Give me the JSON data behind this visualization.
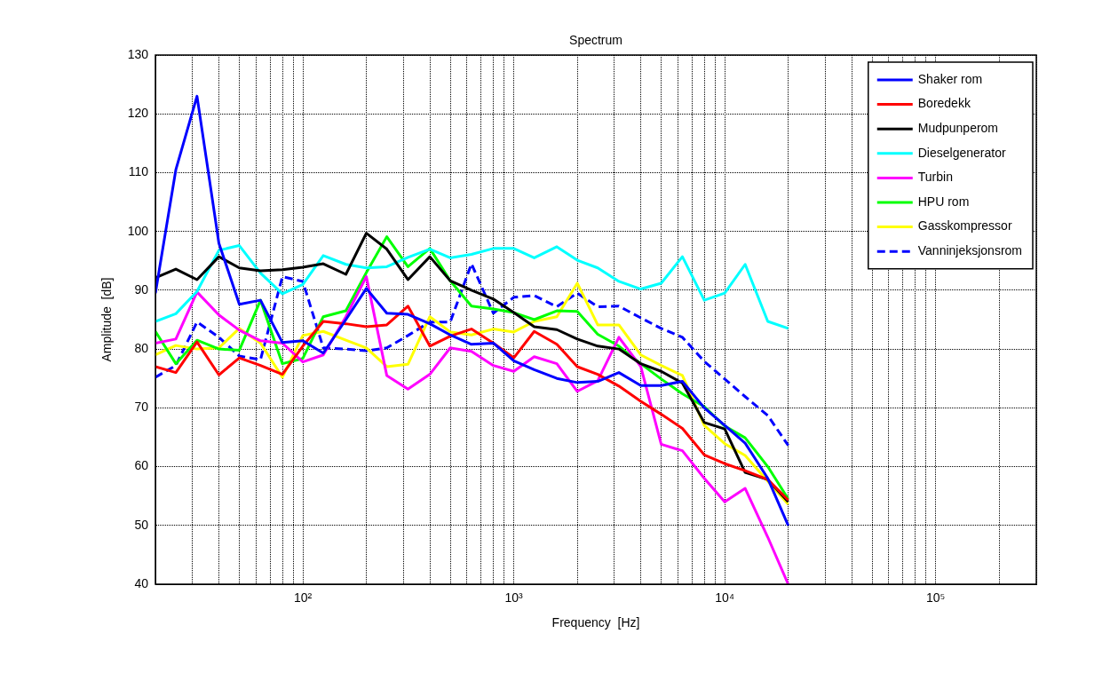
{
  "chart_data": {
    "type": "line",
    "title": "Spectrum",
    "xlabel": "Frequency  [Hz]",
    "ylabel": "Amplitude  [dB]",
    "log": "x",
    "grid": true,
    "legend": "top right",
    "line_style": "solid",
    "xlim": [
      20,
      300000
    ],
    "ylim": [
      40,
      130
    ],
    "xticks": [
      {
        "value": 20,
        "label": null
      },
      {
        "value": 30,
        "label": null
      },
      {
        "value": 40,
        "label": null
      },
      {
        "value": 50,
        "label": null
      },
      {
        "value": 60,
        "label": null
      },
      {
        "value": 70,
        "label": null
      },
      {
        "value": 80,
        "label": null
      },
      {
        "value": 90,
        "label": null
      },
      {
        "value": 100,
        "label": "10²"
      },
      {
        "value": 200,
        "label": null
      },
      {
        "value": 300,
        "label": null
      },
      {
        "value": 400,
        "label": null
      },
      {
        "value": 500,
        "label": null
      },
      {
        "value": 600,
        "label": null
      },
      {
        "value": 700,
        "label": null
      },
      {
        "value": 800,
        "label": null
      },
      {
        "value": 900,
        "label": null
      },
      {
        "value": 1000,
        "label": "10³"
      },
      {
        "value": 2000,
        "label": null
      },
      {
        "value": 3000,
        "label": null
      },
      {
        "value": 4000,
        "label": null
      },
      {
        "value": 5000,
        "label": null
      },
      {
        "value": 6000,
        "label": null
      },
      {
        "value": 7000,
        "label": null
      },
      {
        "value": 8000,
        "label": null
      },
      {
        "value": 9000,
        "label": null
      },
      {
        "value": 10000,
        "label": "10⁴"
      },
      {
        "value": 20000,
        "label": null
      },
      {
        "value": 30000,
        "label": null
      },
      {
        "value": 40000,
        "label": null
      },
      {
        "value": 50000,
        "label": null
      },
      {
        "value": 60000,
        "label": null
      },
      {
        "value": 70000,
        "label": null
      },
      {
        "value": 80000,
        "label": null
      },
      {
        "value": 90000,
        "label": null
      },
      {
        "value": 100000,
        "label": "10⁵"
      },
      {
        "value": 200000,
        "label": null
      },
      {
        "value": 300000,
        "label": null
      }
    ],
    "yticks": [
      40,
      50,
      60,
      70,
      80,
      90,
      100,
      110,
      120,
      130
    ],
    "x": [
      20,
      25,
      31.5,
      40,
      50,
      63,
      80,
      100,
      125,
      160,
      200,
      250,
      315,
      400,
      500,
      630,
      800,
      1000,
      1250,
      1600,
      2000,
      2500,
      3150,
      4000,
      5000,
      6300,
      8000,
      10000,
      12500,
      16000,
      20000
    ],
    "series": [
      {
        "name": "Shaker rom",
        "color": "#0000ff",
        "values": [
          89.5,
          110.5,
          123,
          98,
          87.6,
          88.3,
          81.1,
          81.4,
          79.3,
          85,
          90.3,
          86.1,
          85.9,
          84.3,
          82.4,
          80.8,
          81,
          78,
          76.5,
          75,
          74.3,
          74.5,
          76,
          73.8,
          73.8,
          74.5,
          70,
          67,
          64,
          58,
          50
        ]
      },
      {
        "name": "Boredekk",
        "color": "#ff0000",
        "values": [
          77,
          76,
          81.2,
          75.6,
          78.5,
          77.2,
          75.7,
          80.5,
          84.7,
          84.3,
          83.8,
          84.1,
          87.3,
          80.5,
          82.2,
          83.4,
          81,
          78.5,
          83,
          80.8,
          77,
          75.7,
          73.7,
          71.1,
          68.9,
          66.5,
          62,
          60.5,
          59.3,
          57.8,
          54.3
        ]
      },
      {
        "name": "Mudpunperom",
        "color": "#000000",
        "values": [
          92.1,
          93.6,
          91.8,
          95.7,
          93.8,
          93.3,
          93.5,
          93.9,
          94.5,
          92.7,
          99.7,
          97,
          91.8,
          95.7,
          91.6,
          90,
          88.5,
          86.2,
          83.8,
          83.3,
          81.7,
          80.5,
          80,
          77.5,
          76.2,
          74.2,
          67.5,
          66.4,
          59,
          57.8,
          54
        ]
      },
      {
        "name": "Dieselgenerator",
        "color": "#00ffff",
        "values": [
          84.7,
          86,
          89.8,
          96.8,
          97.6,
          92.9,
          89.4,
          91,
          95.9,
          94.4,
          93.8,
          94,
          95.6,
          97,
          95.5,
          96.1,
          97.1,
          97.1,
          95.5,
          97.4,
          95.1,
          93.8,
          91.5,
          90.2,
          91.2,
          95.7,
          88.3,
          89.5,
          94.4,
          84.7,
          83.5
        ]
      },
      {
        "name": "Turbin",
        "color": "#ff00ff",
        "values": [
          81,
          81.7,
          89.7,
          85.8,
          83.2,
          81.4,
          81,
          77.8,
          79,
          85.5,
          92.3,
          75.5,
          73.2,
          75.7,
          80.2,
          79.6,
          77.2,
          76.2,
          78.7,
          77.5,
          72.8,
          74.6,
          82,
          77,
          63.8,
          62.7,
          58,
          54,
          56.3,
          48,
          40
        ]
      },
      {
        "name": "HPU rom",
        "color": "#00ff00",
        "values": [
          83,
          77.5,
          81.5,
          80,
          79.8,
          88.3,
          77.5,
          78.4,
          85.5,
          86.5,
          93,
          99.1,
          94,
          97.1,
          91.6,
          87.3,
          86.8,
          86.2,
          85,
          86.5,
          86.4,
          82.5,
          80.5,
          77.5,
          74.9,
          72.4,
          70.2,
          66.9,
          64.9,
          60,
          54.5
        ]
      },
      {
        "name": "Gasskompressor",
        "color": "#ffff00",
        "values": [
          79,
          80.6,
          80,
          80.2,
          83.5,
          81,
          75.2,
          82.3,
          83,
          81.5,
          80.2,
          77,
          77.4,
          85.5,
          82.9,
          82.4,
          83.4,
          82.9,
          84.7,
          85.5,
          91.2,
          84.1,
          84.1,
          79,
          77.2,
          75.5,
          67,
          63.9,
          61.9,
          57.5,
          53.6
        ]
      },
      {
        "name": "Vanninjeksjonsrom",
        "color": "#0000ff",
        "line_style": "dashed",
        "values": [
          75.2,
          77.2,
          84.6,
          82,
          78.8,
          78.2,
          92.3,
          91.5,
          80.2,
          80,
          79.7,
          80.2,
          82.3,
          84.6,
          84.6,
          94.5,
          86.1,
          88.8,
          89.1,
          87.2,
          89.5,
          87.2,
          87.3,
          85.3,
          83.5,
          82,
          77.9,
          74.9,
          71.9,
          68.7,
          63.6
        ]
      }
    ]
  }
}
